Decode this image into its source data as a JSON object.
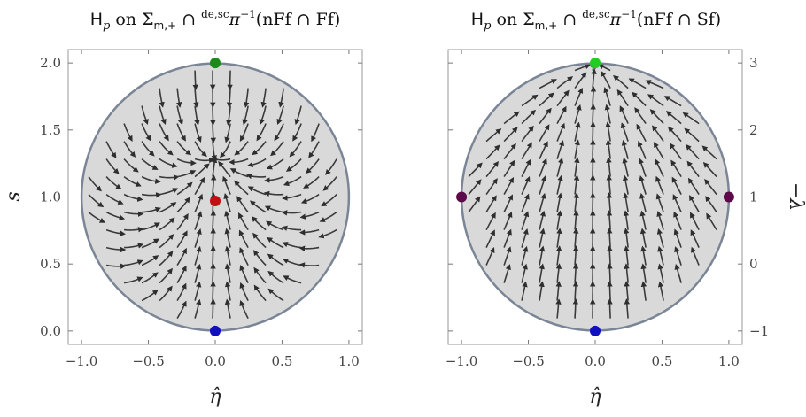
{
  "chart_data": [
    {
      "type": "stream",
      "title": "H_p on Σ_{m,+} ∩ ^{de,sc}π^{-1}(nFf ∩ Ff)",
      "title_parts": {
        "H": "H",
        "p": "p",
        "on": " on ",
        "sigma": "Σ",
        "sub": "m,+",
        "cap": " ∩ ",
        "sup": "de,sc",
        "pi": "π",
        "inv": "−1",
        "rest": "(nFf ∩ Ff)"
      },
      "xlabel": "η̂",
      "ylabel": "s",
      "xlim": [
        -1.1,
        1.1
      ],
      "ylim": [
        -0.1,
        2.1
      ],
      "x_ticks": [
        -1.0,
        -0.5,
        0.0,
        0.5,
        1.0
      ],
      "x_tick_labels": [
        "−1.0",
        "−0.5",
        "0.0",
        "0.5",
        "1.0"
      ],
      "y_ticks": [
        0.0,
        0.5,
        1.0,
        1.5,
        2.0
      ],
      "y_tick_labels": [
        "0.0",
        "0.5",
        "1.0",
        "1.5",
        "2.0"
      ],
      "disk": {
        "center": [
          0,
          1
        ],
        "radius": 1
      },
      "points": [
        {
          "x": 0,
          "y": 2.0,
          "color": "#1a8a1a"
        },
        {
          "x": 0,
          "y": 0.97,
          "color": "#c01010"
        },
        {
          "x": 0,
          "y": 0.0,
          "color": "#1010c0"
        }
      ]
    },
    {
      "type": "stream",
      "title": "H_p on Σ_{m,+} ∩ ^{de,sc}π^{-1}(nFf ∩ Sf)",
      "title_parts": {
        "H": "H",
        "p": "p",
        "on": " on ",
        "sigma": "Σ",
        "sub": "m,+",
        "cap": " ∩ ",
        "sup": "de,sc",
        "pi": "π",
        "inv": "−1",
        "rest": "(nFf ∩ Sf)"
      },
      "xlabel": "η̂",
      "ylabel": "−λ",
      "xlim": [
        -1.1,
        1.1
      ],
      "ylim": [
        -1.2,
        3.2
      ],
      "x_ticks": [
        -1.0,
        -0.5,
        0.0,
        0.5,
        1.0
      ],
      "x_tick_labels": [
        "−1.0",
        "−0.5",
        "0.0",
        "0.5",
        "1.0"
      ],
      "y_ticks": [
        -1,
        0,
        1,
        2,
        3
      ],
      "y_tick_labels": [
        "−1",
        "0",
        "1",
        "2",
        "3"
      ],
      "disk": {
        "center": [
          0,
          1
        ],
        "radius": 1
      },
      "points": [
        {
          "x": 0,
          "y": 3,
          "color": "#22cc22"
        },
        {
          "x": -1,
          "y": 1,
          "color": "#5c0a4a"
        },
        {
          "x": 1,
          "y": 1,
          "color": "#5c0a4a"
        },
        {
          "x": 0,
          "y": -1,
          "color": "#1010c0"
        }
      ]
    }
  ]
}
